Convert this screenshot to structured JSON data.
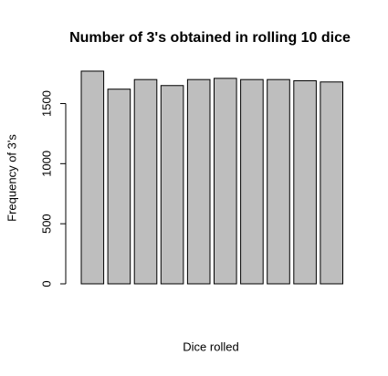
{
  "chart_data": {
    "type": "bar",
    "title": "Number of 3's obtained in rolling 10 dice",
    "xlabel": "Dice rolled",
    "ylabel": "Frequency of 3's",
    "values": [
      1770,
      1620,
      1700,
      1650,
      1700,
      1710,
      1700,
      1700,
      1690,
      1680
    ],
    "color": "#bebebe",
    "ylim": [
      0,
      1800
    ],
    "yticks": [
      0,
      500,
      1000,
      1500
    ]
  }
}
